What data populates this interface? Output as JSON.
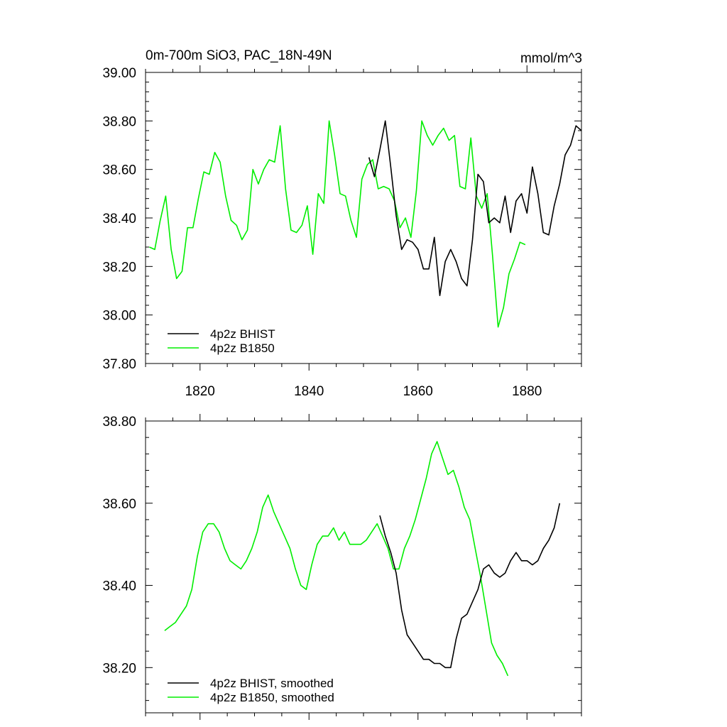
{
  "colors": {
    "bhist": "#000000",
    "b1850": "#00ee00"
  },
  "chart_data": [
    {
      "type": "line",
      "title": "0m-700m SiO3, PAC_18N-49N",
      "units": "mmol/m^3",
      "xlim": [
        1810,
        1890
      ],
      "ylim": [
        37.8,
        39.0
      ],
      "ytick_labels": [
        "39.00",
        "38.80",
        "38.60",
        "38.40",
        "38.20",
        "38.00",
        "37.80"
      ],
      "yticks": [
        39.0,
        38.8,
        38.6,
        38.4,
        38.2,
        38.0,
        37.8
      ],
      "xtick_labels": [
        "1820",
        "1840",
        "1860",
        "1880"
      ],
      "xticks": [
        1820,
        1840,
        1860,
        1880
      ],
      "legend_position": "bottom-left",
      "series": [
        {
          "name": "4p2z BHIST",
          "color_key": "bhist",
          "x_start": 1851,
          "values": [
            38.65,
            38.57,
            38.68,
            38.8,
            38.61,
            38.41,
            38.27,
            38.31,
            38.3,
            38.27,
            38.19,
            38.19,
            38.32,
            38.08,
            38.22,
            38.27,
            38.22,
            38.15,
            38.12,
            38.31,
            38.58,
            38.55,
            38.38,
            38.4,
            38.38,
            38.49,
            38.34,
            38.47,
            38.5,
            38.42,
            38.61,
            38.5,
            38.34,
            38.33,
            38.45,
            38.54,
            38.66,
            38.7,
            38.78,
            38.76
          ]
        },
        {
          "name": "4p2z B1850",
          "color_key": "b1850",
          "x_start": 1810.7,
          "values": [
            38.28,
            38.27,
            38.39,
            38.49,
            38.27,
            38.15,
            38.18,
            38.36,
            38.36,
            38.48,
            38.59,
            38.58,
            38.67,
            38.63,
            38.49,
            38.39,
            38.37,
            38.31,
            38.35,
            38.6,
            38.54,
            38.6,
            38.64,
            38.63,
            38.78,
            38.52,
            38.35,
            38.34,
            38.37,
            38.45,
            38.25,
            38.5,
            38.46,
            38.8,
            38.66,
            38.5,
            38.49,
            38.39,
            38.32,
            38.56,
            38.62,
            38.64,
            38.52,
            38.53,
            38.52,
            38.47,
            38.36,
            38.4,
            38.32,
            38.51,
            38.8,
            38.74,
            38.7,
            38.74,
            38.77,
            38.72,
            38.74,
            38.53,
            38.52,
            38.73,
            38.49,
            38.44,
            38.5,
            38.24,
            37.95,
            38.03,
            38.17,
            38.23,
            38.3,
            38.29
          ]
        }
      ]
    },
    {
      "type": "line",
      "title": "",
      "xlim": [
        1810,
        1890
      ],
      "ylim": [
        38.09,
        38.8
      ],
      "ytick_labels": [
        "38.80",
        "38.60",
        "38.40",
        "38.20"
      ],
      "yticks": [
        38.8,
        38.6,
        38.4,
        38.2
      ],
      "xticks": [
        1820,
        1840,
        1860,
        1880
      ],
      "legend_position": "bottom-left",
      "series": [
        {
          "name": "4p2z BHIST, smoothed",
          "color_key": "bhist",
          "x_start": 1853,
          "values": [
            38.57,
            38.52,
            38.48,
            38.43,
            38.34,
            38.28,
            38.26,
            38.24,
            38.22,
            38.22,
            38.21,
            38.21,
            38.2,
            38.2,
            38.27,
            38.32,
            38.33,
            38.36,
            38.39,
            38.44,
            38.45,
            38.43,
            38.42,
            38.43,
            38.46,
            38.48,
            38.46,
            38.46,
            38.45,
            38.46,
            38.49,
            38.51,
            38.54,
            38.6
          ]
        },
        {
          "name": "4p2z B1850, smoothed",
          "color_key": "b1850",
          "x_start": 1813.5,
          "values": [
            38.29,
            38.3,
            38.31,
            38.33,
            38.35,
            38.39,
            38.47,
            38.53,
            38.55,
            38.55,
            38.53,
            38.49,
            38.46,
            38.45,
            38.44,
            38.46,
            38.49,
            38.53,
            38.59,
            38.62,
            38.58,
            38.55,
            38.52,
            38.49,
            38.44,
            38.4,
            38.39,
            38.45,
            38.5,
            38.52,
            38.52,
            38.54,
            38.51,
            38.53,
            38.5,
            38.5,
            38.5,
            38.51,
            38.53,
            38.55,
            38.52,
            38.49,
            38.44,
            38.44,
            38.49,
            38.52,
            38.56,
            38.61,
            38.66,
            38.72,
            38.75,
            38.71,
            38.67,
            38.68,
            38.64,
            38.59,
            38.56,
            38.49,
            38.42,
            38.34,
            38.26,
            38.23,
            38.21,
            38.18
          ]
        }
      ]
    }
  ]
}
